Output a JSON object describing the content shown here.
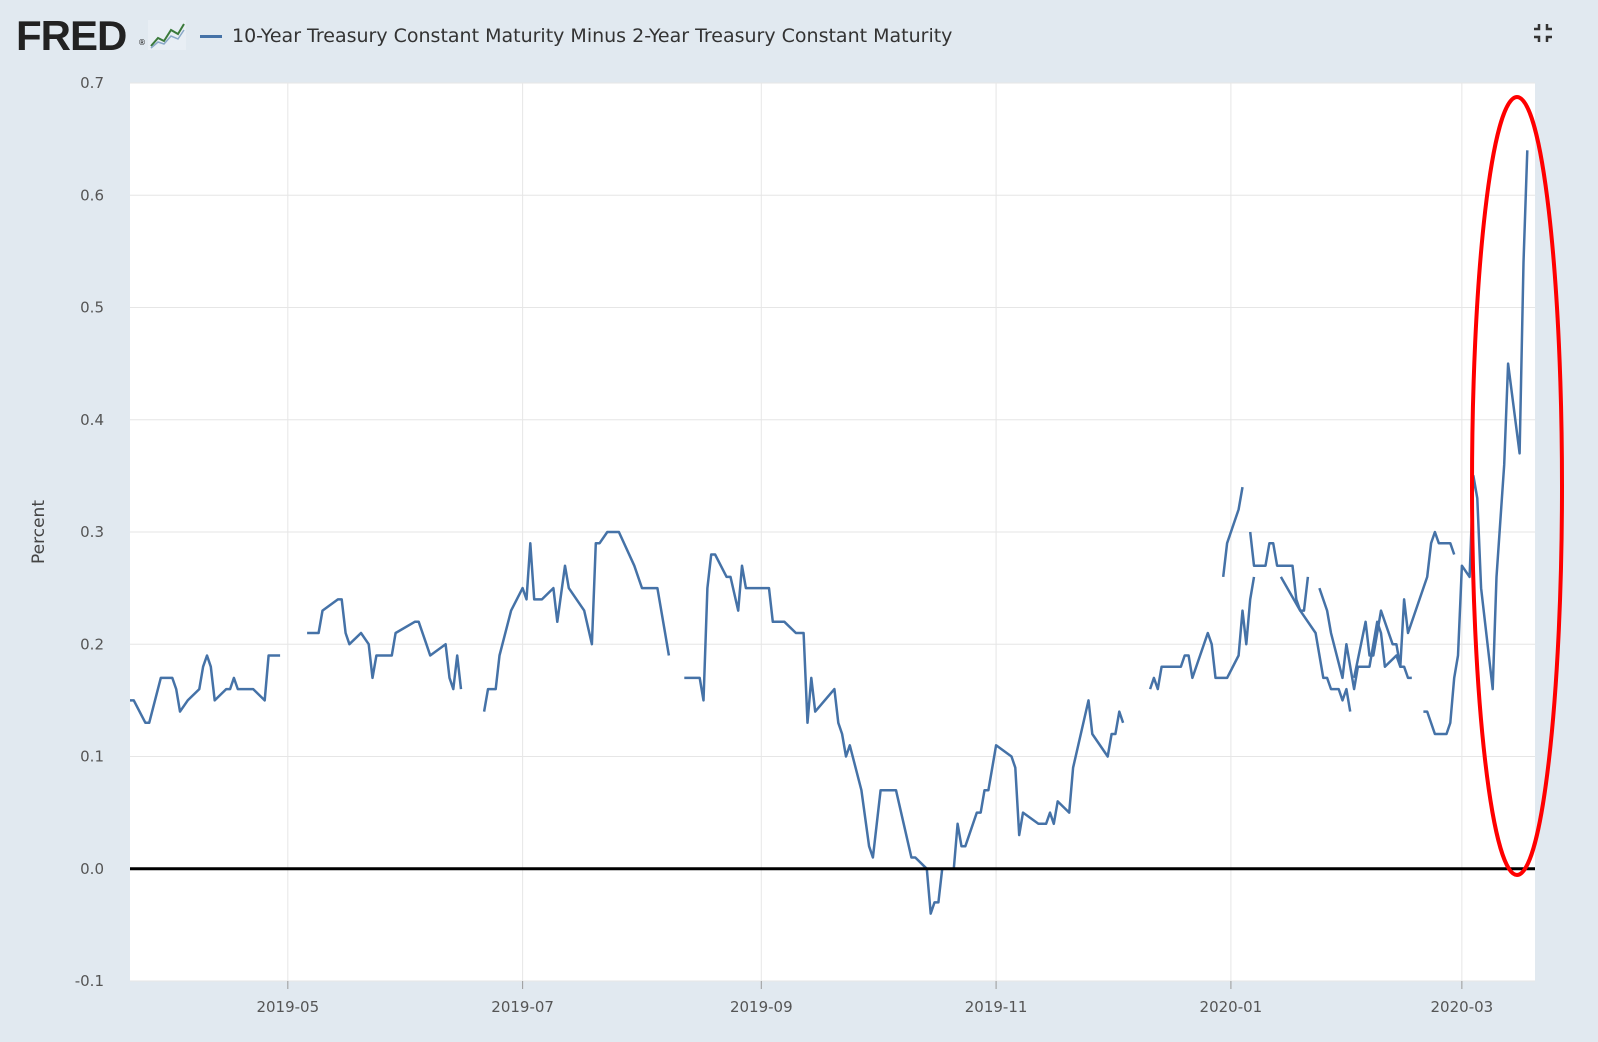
{
  "header": {
    "logo_text": "FRED",
    "logo_reg": "®",
    "legend_label": "10-Year Treasury Constant Maturity Minus 2-Year Treasury Constant Maturity",
    "collapse_icon": "collapse-icon"
  },
  "colors": {
    "page_bg": "#e1e9f0",
    "plot_bg": "#ffffff",
    "series": "#4572a7",
    "zero_line": "#000000",
    "highlight": "#ff0000",
    "grid": "#e6e6e6"
  },
  "chart_data": {
    "type": "line",
    "title": "10-Year Treasury Constant Maturity Minus 2-Year Treasury Constant Maturity",
    "xlabel": "",
    "ylabel": "Percent",
    "ylim": [
      -0.1,
      0.7
    ],
    "xlim": [
      "2019-03-21",
      "2020-03-20"
    ],
    "yticks": [
      "0.7",
      "0.6",
      "0.5",
      "0.4",
      "0.3",
      "0.2",
      "0.1",
      "0.0",
      "-0.1"
    ],
    "xticks": [
      "2019-05",
      "2019-07",
      "2019-09",
      "2019-11",
      "2020-01",
      "2020-03"
    ],
    "xtick_dates": [
      "2019-05-01",
      "2019-07-01",
      "2019-09-01",
      "2019-11-01",
      "2020-01-01",
      "2020-03-01"
    ],
    "annotation": "red ellipse highlighting March 2020 steepening",
    "series": [
      {
        "name": "10-Year Treasury Constant Maturity Minus 2-Year Treasury Constant Maturity",
        "segments": [
          [
            [
              "2019-03-21",
              0.15
            ],
            [
              "2019-03-22",
              0.15
            ],
            [
              "2019-03-25",
              0.13
            ],
            [
              "2019-03-26",
              0.13
            ],
            [
              "2019-03-29",
              0.17
            ],
            [
              "2019-04-01",
              0.17
            ],
            [
              "2019-04-02",
              0.16
            ],
            [
              "2019-04-03",
              0.14
            ],
            [
              "2019-04-05",
              0.15
            ],
            [
              "2019-04-08",
              0.16
            ],
            [
              "2019-04-09",
              0.18
            ],
            [
              "2019-04-10",
              0.19
            ],
            [
              "2019-04-11",
              0.18
            ],
            [
              "2019-04-12",
              0.15
            ],
            [
              "2019-04-15",
              0.16
            ],
            [
              "2019-04-16",
              0.16
            ],
            [
              "2019-04-17",
              0.17
            ],
            [
              "2019-04-18",
              0.16
            ],
            [
              "2019-04-22",
              0.16
            ],
            [
              "2019-04-25",
              0.15
            ],
            [
              "2019-04-26",
              0.19
            ],
            [
              "2019-04-29",
              0.19
            ]
          ],
          [
            [
              "2019-05-06",
              0.21
            ],
            [
              "2019-05-09",
              0.21
            ],
            [
              "2019-05-10",
              0.23
            ],
            [
              "2019-05-14",
              0.24
            ],
            [
              "2019-05-15",
              0.24
            ],
            [
              "2019-05-16",
              0.21
            ],
            [
              "2019-05-17",
              0.2
            ],
            [
              "2019-05-20",
              0.21
            ],
            [
              "2019-05-22",
              0.2
            ],
            [
              "2019-05-23",
              0.17
            ],
            [
              "2019-05-24",
              0.19
            ],
            [
              "2019-05-28",
              0.19
            ],
            [
              "2019-05-29",
              0.21
            ],
            [
              "2019-06-03",
              0.22
            ],
            [
              "2019-06-04",
              0.22
            ],
            [
              "2019-06-06",
              0.2
            ],
            [
              "2019-06-07",
              0.19
            ],
            [
              "2019-06-11",
              0.2
            ],
            [
              "2019-06-12",
              0.17
            ],
            [
              "2019-06-13",
              0.16
            ],
            [
              "2019-06-14",
              0.19
            ],
            [
              "2019-06-15",
              0.16
            ]
          ],
          [
            [
              "2019-06-21",
              0.14
            ],
            [
              "2019-06-22",
              0.16
            ],
            [
              "2019-06-24",
              0.16
            ],
            [
              "2019-06-25",
              0.19
            ],
            [
              "2019-06-28",
              0.23
            ],
            [
              "2019-07-01",
              0.25
            ],
            [
              "2019-07-02",
              0.24
            ],
            [
              "2019-07-03",
              0.29
            ],
            [
              "2019-07-04",
              0.24
            ],
            [
              "2019-07-06",
              0.24
            ],
            [
              "2019-07-09",
              0.25
            ],
            [
              "2019-07-10",
              0.22
            ],
            [
              "2019-07-12",
              0.27
            ],
            [
              "2019-07-13",
              0.25
            ],
            [
              "2019-07-17",
              0.23
            ],
            [
              "2019-07-19",
              0.2
            ],
            [
              "2019-07-20",
              0.29
            ],
            [
              "2019-07-21",
              0.29
            ],
            [
              "2019-07-23",
              0.3
            ],
            [
              "2019-07-26",
              0.3
            ],
            [
              "2019-07-30",
              0.27
            ],
            [
              "2019-08-01",
              0.25
            ],
            [
              "2019-08-05",
              0.25
            ],
            [
              "2019-08-07",
              0.21
            ],
            [
              "2019-08-08",
              0.19
            ]
          ],
          [
            [
              "2019-08-12",
              0.17
            ],
            [
              "2019-08-16",
              0.17
            ],
            [
              "2019-08-17",
              0.15
            ],
            [
              "2019-08-18",
              0.25
            ],
            [
              "2019-08-19",
              0.28
            ],
            [
              "2019-08-20",
              0.28
            ],
            [
              "2019-08-23",
              0.26
            ],
            [
              "2019-08-24",
              0.26
            ],
            [
              "2019-08-26",
              0.23
            ],
            [
              "2019-08-27",
              0.27
            ],
            [
              "2019-08-28",
              0.25
            ],
            [
              "2019-09-03",
              0.25
            ],
            [
              "2019-09-04",
              0.22
            ],
            [
              "2019-09-07",
              0.22
            ],
            [
              "2019-09-10",
              0.21
            ],
            [
              "2019-09-12",
              0.21
            ],
            [
              "2019-09-13",
              0.13
            ],
            [
              "2019-09-14",
              0.17
            ],
            [
              "2019-09-15",
              0.14
            ],
            [
              "2019-09-20",
              0.16
            ],
            [
              "2019-09-21",
              0.13
            ],
            [
              "2019-09-22",
              0.12
            ],
            [
              "2019-09-23",
              0.1
            ],
            [
              "2019-09-24",
              0.11
            ],
            [
              "2019-09-27",
              0.07
            ],
            [
              "2019-09-29",
              0.02
            ],
            [
              "2019-09-30",
              0.01
            ],
            [
              "2019-10-02",
              0.07
            ],
            [
              "2019-10-06",
              0.07
            ],
            [
              "2019-10-08",
              0.04
            ],
            [
              "2019-10-10",
              0.01
            ],
            [
              "2019-10-11",
              0.01
            ],
            [
              "2019-10-14",
              0.0
            ],
            [
              "2019-10-15",
              -0.04
            ],
            [
              "2019-10-16",
              -0.03
            ],
            [
              "2019-10-17",
              -0.03
            ],
            [
              "2019-10-18",
              0.0
            ]
          ],
          [
            [
              "2019-10-21",
              0.0
            ],
            [
              "2019-10-22",
              0.04
            ],
            [
              "2019-10-23",
              0.02
            ],
            [
              "2019-10-24",
              0.02
            ],
            [
              "2019-10-27",
              0.05
            ],
            [
              "2019-10-28",
              0.05
            ],
            [
              "2019-10-29",
              0.07
            ],
            [
              "2019-10-30",
              0.07
            ],
            [
              "2019-11-01",
              0.11
            ],
            [
              "2019-11-05",
              0.1
            ],
            [
              "2019-11-06",
              0.09
            ],
            [
              "2019-11-07",
              0.03
            ],
            [
              "2019-11-08",
              0.05
            ],
            [
              "2019-11-12",
              0.04
            ],
            [
              "2019-11-14",
              0.04
            ],
            [
              "2019-11-15",
              0.05
            ],
            [
              "2019-11-16",
              0.04
            ],
            [
              "2019-11-17",
              0.06
            ],
            [
              "2019-11-20",
              0.05
            ],
            [
              "2019-11-21",
              0.09
            ],
            [
              "2019-11-25",
              0.15
            ],
            [
              "2019-11-26",
              0.12
            ],
            [
              "2019-11-30",
              0.1
            ],
            [
              "2019-12-01",
              0.12
            ],
            [
              "2019-12-02",
              0.12
            ],
            [
              "2019-12-03",
              0.14
            ],
            [
              "2019-12-04",
              0.13
            ]
          ],
          [
            [
              "2019-12-11",
              0.16
            ],
            [
              "2019-12-12",
              0.17
            ],
            [
              "2019-12-13",
              0.16
            ],
            [
              "2019-12-14",
              0.18
            ],
            [
              "2019-12-19",
              0.18
            ],
            [
              "2019-12-20",
              0.19
            ],
            [
              "2019-12-21",
              0.19
            ],
            [
              "2019-12-22",
              0.17
            ],
            [
              "2019-12-26",
              0.21
            ],
            [
              "2019-12-27",
              0.2
            ],
            [
              "2019-12-28",
              0.17
            ],
            [
              "2019-12-31",
              0.17
            ],
            [
              "2020-01-03",
              0.19
            ],
            [
              "2020-01-04",
              0.23
            ],
            [
              "2020-01-05",
              0.2
            ],
            [
              "2020-01-06",
              0.24
            ],
            [
              "2020-01-07",
              0.26
            ]
          ],
          [
            [
              "2020-01-14",
              0.26
            ],
            [
              "2020-01-19",
              0.23
            ],
            [
              "2020-01-23",
              0.21
            ],
            [
              "2020-01-25",
              0.17
            ],
            [
              "2020-01-26",
              0.17
            ],
            [
              "2020-01-27",
              0.16
            ],
            [
              "2020-01-29",
              0.16
            ],
            [
              "2020-01-30",
              0.15
            ],
            [
              "2020-01-31",
              0.16
            ],
            [
              "2020-02-01",
              0.14
            ]
          ],
          [
            [
              "2020-02-02",
              0.17
            ],
            [
              "2020-02-05",
              0.22
            ],
            [
              "2020-02-06",
              0.19
            ],
            [
              "2020-02-07",
              0.19
            ],
            [
              "2020-02-08",
              0.21
            ],
            [
              "2020-02-09",
              0.23
            ],
            [
              "2020-02-12",
              0.2
            ],
            [
              "2020-02-13",
              0.2
            ],
            [
              "2020-02-14",
              0.18
            ],
            [
              "2020-02-15",
              0.24
            ],
            [
              "2020-02-16",
              0.21
            ],
            [
              "2020-02-19",
              0.24
            ],
            [
              "2020-02-21",
              0.26
            ],
            [
              "2020-02-22",
              0.29
            ],
            [
              "2020-02-23",
              0.3
            ],
            [
              "2020-02-24",
              0.29
            ],
            [
              "2020-02-27",
              0.29
            ],
            [
              "2020-02-28",
              0.28
            ]
          ],
          [
            [
              "2019-12-30",
              0.26
            ],
            [
              "2019-12-31",
              0.29
            ],
            [
              "2020-01-03",
              0.32
            ],
            [
              "2020-01-04",
              0.34
            ]
          ],
          [
            [
              "2020-01-06",
              0.3
            ],
            [
              "2020-01-07",
              0.27
            ],
            [
              "2020-01-10",
              0.27
            ],
            [
              "2020-01-11",
              0.29
            ],
            [
              "2020-01-12",
              0.29
            ],
            [
              "2020-01-13",
              0.27
            ],
            [
              "2020-01-17",
              0.27
            ],
            [
              "2020-01-18",
              0.24
            ],
            [
              "2020-01-19",
              0.23
            ],
            [
              "2020-01-20",
              0.23
            ],
            [
              "2020-01-21",
              0.26
            ]
          ],
          [
            [
              "2020-01-24",
              0.25
            ],
            [
              "2020-01-26",
              0.23
            ],
            [
              "2020-01-27",
              0.21
            ],
            [
              "2020-01-30",
              0.17
            ],
            [
              "2020-01-31",
              0.2
            ],
            [
              "2020-02-02",
              0.16
            ],
            [
              "2020-02-03",
              0.18
            ],
            [
              "2020-02-06",
              0.18
            ],
            [
              "2020-02-08",
              0.22
            ],
            [
              "2020-02-09",
              0.21
            ],
            [
              "2020-02-10",
              0.18
            ],
            [
              "2020-02-13",
              0.19
            ],
            [
              "2020-02-14",
              0.18
            ],
            [
              "2020-02-15",
              0.18
            ],
            [
              "2020-02-16",
              0.17
            ],
            [
              "2020-02-17",
              0.17
            ]
          ],
          [
            [
              "2020-02-20",
              0.14
            ],
            [
              "2020-02-21",
              0.14
            ],
            [
              "2020-02-23",
              0.12
            ],
            [
              "2020-02-26",
              0.12
            ],
            [
              "2020-02-27",
              0.13
            ],
            [
              "2020-02-28",
              0.17
            ],
            [
              "2020-02-29",
              0.19
            ],
            [
              "2020-03-01",
              0.27
            ],
            [
              "2020-03-03",
              0.26
            ],
            [
              "2020-03-04",
              0.35
            ],
            [
              "2020-03-05",
              0.33
            ],
            [
              "2020-03-06",
              0.25
            ],
            [
              "2020-03-09",
              0.16
            ],
            [
              "2020-03-10",
              0.26
            ],
            [
              "2020-03-12",
              0.36
            ],
            [
              "2020-03-13",
              0.45
            ],
            [
              "2020-03-16",
              0.37
            ],
            [
              "2020-03-17",
              0.54
            ],
            [
              "2020-03-18",
              0.64
            ]
          ]
        ]
      }
    ]
  }
}
